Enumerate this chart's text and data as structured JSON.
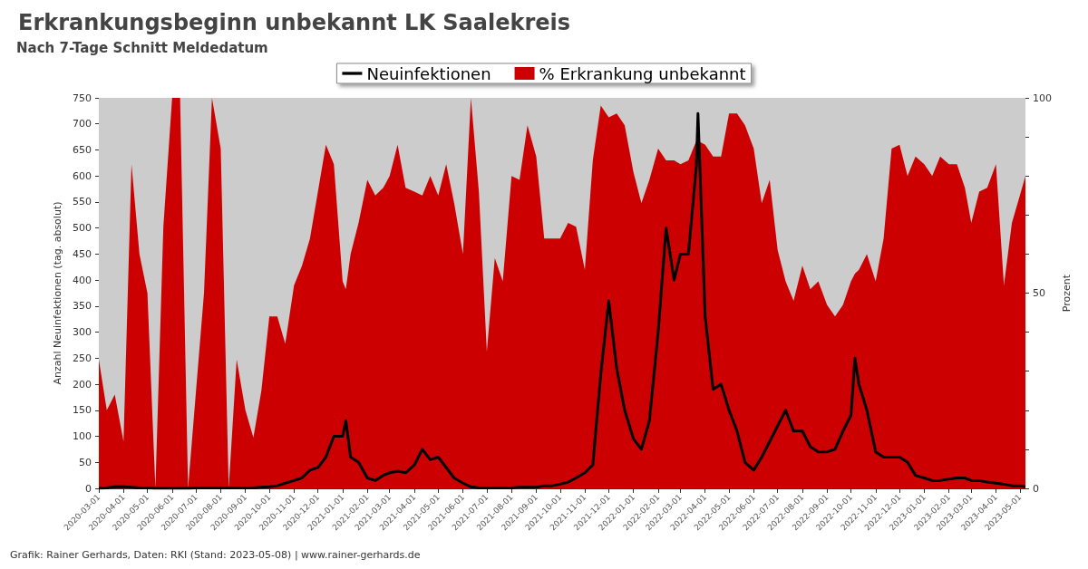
{
  "chart_data": {
    "type": "line",
    "title": "Erkrankungsbeginn unbekannt LK Saalekreis",
    "subtitle": "Nach 7-Tage Schnitt Meldedatum",
    "ylabel": "Anzahl Neuinfektionen (tag. absolut)",
    "y2label": "Prozent",
    "legend": "top",
    "grid": false,
    "annotations": [
      "Grafik: Rainer Gerhards, Daten: RKI (Stand: 2023-05-08) | www.rainer-gerhards.de"
    ],
    "x": [
      "2020-03-01",
      "2020-03-11",
      "2020-03-21",
      "2020-04-01",
      "2020-04-11",
      "2020-04-21",
      "2020-05-01",
      "2020-05-11",
      "2020-05-21",
      "2020-06-01",
      "2020-06-11",
      "2020-06-21",
      "2020-07-01",
      "2020-07-11",
      "2020-07-21",
      "2020-08-01",
      "2020-08-11",
      "2020-08-21",
      "2020-09-01",
      "2020-09-11",
      "2020-09-21",
      "2020-10-01",
      "2020-10-11",
      "2020-10-21",
      "2020-11-01",
      "2020-11-11",
      "2020-11-21",
      "2020-12-01",
      "2020-12-11",
      "2020-12-21",
      "2021-01-01",
      "2021-01-05",
      "2021-01-11",
      "2021-01-21",
      "2021-02-01",
      "2021-02-11",
      "2021-02-21",
      "2021-03-01",
      "2021-03-11",
      "2021-03-21",
      "2021-04-01",
      "2021-04-11",
      "2021-04-21",
      "2021-05-01",
      "2021-05-11",
      "2021-05-21",
      "2021-06-01",
      "2021-06-11",
      "2021-06-21",
      "2021-07-01",
      "2021-07-11",
      "2021-07-21",
      "2021-08-01",
      "2021-08-11",
      "2021-08-21",
      "2021-09-01",
      "2021-09-11",
      "2021-09-21",
      "2021-10-01",
      "2021-10-11",
      "2021-10-21",
      "2021-11-01",
      "2021-11-11",
      "2021-11-21",
      "2021-12-01",
      "2021-12-11",
      "2021-12-21",
      "2022-01-01",
      "2022-01-11",
      "2022-01-21",
      "2022-02-01",
      "2022-02-11",
      "2022-02-21",
      "2022-03-01",
      "2022-03-11",
      "2022-03-21",
      "2022-03-23",
      "2022-04-01",
      "2022-04-11",
      "2022-04-21",
      "2022-05-01",
      "2022-05-11",
      "2022-05-21",
      "2022-06-01",
      "2022-06-11",
      "2022-06-21",
      "2022-07-01",
      "2022-07-11",
      "2022-07-21",
      "2022-08-01",
      "2022-08-11",
      "2022-08-21",
      "2022-09-01",
      "2022-09-11",
      "2022-09-21",
      "2022-10-01",
      "2022-10-06",
      "2022-10-11",
      "2022-10-21",
      "2022-11-01",
      "2022-11-11",
      "2022-11-21",
      "2022-12-01",
      "2022-12-11",
      "2022-12-21",
      "2023-01-01",
      "2023-01-11",
      "2023-01-21",
      "2023-02-01",
      "2023-02-11",
      "2023-02-21",
      "2023-03-01",
      "2023-03-11",
      "2023-03-21",
      "2023-04-01",
      "2023-04-11",
      "2023-04-21",
      "2023-05-01",
      "2023-05-08"
    ],
    "series": [
      {
        "name": "Neuinfektionen",
        "type": "line",
        "axis": "y",
        "color": "#000000",
        "values": [
          0,
          1,
          3,
          3,
          2,
          1,
          1,
          0,
          0,
          0,
          0,
          0,
          1,
          1,
          1,
          1,
          1,
          1,
          1,
          1,
          2,
          3,
          5,
          10,
          15,
          20,
          35,
          40,
          60,
          100,
          100,
          130,
          60,
          50,
          20,
          15,
          25,
          30,
          33,
          30,
          45,
          75,
          55,
          60,
          40,
          20,
          10,
          3,
          1,
          1,
          1,
          1,
          1,
          2,
          2,
          2,
          5,
          5,
          8,
          12,
          20,
          30,
          45,
          220,
          360,
          230,
          150,
          95,
          75,
          130,
          300,
          500,
          400,
          450,
          450,
          620,
          720,
          330,
          190,
          200,
          150,
          110,
          50,
          35,
          60,
          90,
          120,
          150,
          110,
          110,
          80,
          70,
          70,
          75,
          110,
          140,
          250,
          200,
          150,
          70,
          60,
          60,
          60,
          50,
          25,
          20,
          15,
          15,
          18,
          20,
          20,
          15,
          15,
          12,
          10,
          8,
          5,
          5,
          3
        ]
      },
      {
        "name": "% Erkrankung unbekannt",
        "type": "area",
        "axis": "y2",
        "color": "#cc0000",
        "values": [
          33,
          20,
          24,
          12,
          83,
          60,
          50,
          0,
          67,
          100,
          100,
          0,
          25,
          50,
          100,
          87,
          0,
          33,
          20,
          13,
          25,
          44,
          44,
          37,
          52,
          57,
          64,
          76,
          88,
          83,
          53,
          51,
          60,
          68,
          79,
          75,
          77,
          80,
          88,
          77,
          76,
          75,
          80,
          75,
          83,
          73,
          60,
          100,
          76,
          35,
          59,
          53,
          80,
          79,
          93,
          85,
          64,
          64,
          64,
          68,
          67,
          56,
          84,
          98,
          95,
          96,
          93,
          81,
          73,
          79,
          87,
          84,
          84,
          83,
          84,
          89,
          89,
          88,
          85,
          85,
          96,
          96,
          93,
          87,
          73,
          79,
          61,
          53,
          48,
          57,
          51,
          53,
          47,
          44,
          47,
          53,
          55,
          56,
          60,
          53,
          64,
          87,
          88,
          80,
          85,
          83,
          80,
          85,
          83,
          83,
          77,
          68,
          76,
          77,
          83,
          52,
          68,
          75,
          80
        ]
      }
    ],
    "xlim": [
      "2020-03-01",
      "2023-05-08"
    ],
    "xticks": [
      "2020-03-01",
      "2020-04-01",
      "2020-05-01",
      "2020-06-01",
      "2020-07-01",
      "2020-08-01",
      "2020-09-01",
      "2020-10-01",
      "2020-11-01",
      "2020-12-01",
      "2021-01-01",
      "2021-02-01",
      "2021-03-01",
      "2021-04-01",
      "2021-05-01",
      "2021-06-01",
      "2021-07-01",
      "2021-08-01",
      "2021-09-01",
      "2021-10-01",
      "2021-11-01",
      "2021-12-01",
      "2022-01-01",
      "2022-02-01",
      "2022-03-01",
      "2022-04-01",
      "2022-05-01",
      "2022-06-01",
      "2022-07-01",
      "2022-08-01",
      "2022-09-01",
      "2022-10-01",
      "2022-11-01",
      "2022-12-01",
      "2023-01-01",
      "2023-02-01",
      "2023-03-01",
      "2023-04-01",
      "2023-05-01"
    ],
    "ylim": [
      0,
      750
    ],
    "yticks": [
      0,
      50,
      100,
      150,
      200,
      250,
      300,
      350,
      400,
      450,
      500,
      550,
      600,
      650,
      700,
      750
    ],
    "y2lim": [
      0,
      100
    ],
    "y2ticks": [
      0,
      {
        "value": 10,
        "label": null
      },
      {
        "value": 20,
        "label": null
      },
      {
        "value": 30,
        "label": null
      },
      {
        "value": 40,
        "label": null
      },
      50,
      {
        "value": 60,
        "label": null
      },
      {
        "value": 70,
        "label": null
      },
      {
        "value": 80,
        "label": null
      },
      {
        "value": 90,
        "label": null
      },
      100
    ]
  }
}
